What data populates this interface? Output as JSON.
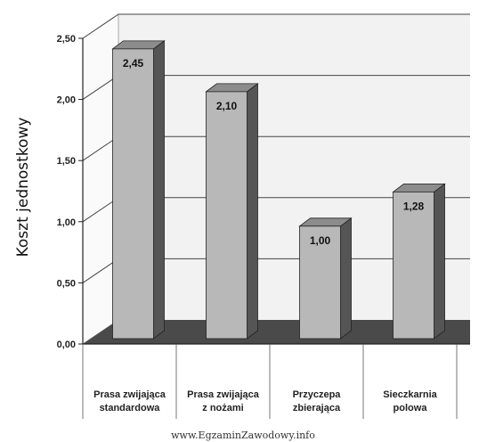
{
  "chart_data": {
    "type": "bar",
    "title": "",
    "xlabel": "",
    "ylabel": "Koszt jednostkowy",
    "categories": [
      [
        "Prasa zwijająca",
        "standardowa"
      ],
      [
        "Prasa zwijająca",
        "z nożami"
      ],
      [
        "Przyczepa",
        "zbierająca"
      ],
      [
        "Sieczkarnia",
        "polowa"
      ]
    ],
    "values": [
      2.45,
      2.1,
      1.0,
      1.28
    ],
    "value_labels": [
      "2,45",
      "2,10",
      "1,00",
      "1,28"
    ],
    "ylim": [
      0,
      2.5
    ],
    "yticks": [
      {
        "value": 0,
        "label": "0,00"
      },
      {
        "value": 0.5,
        "label": "0,50"
      },
      {
        "value": 1.0,
        "label": "1,00"
      },
      {
        "value": 1.5,
        "label": "1,50"
      },
      {
        "value": 2.0,
        "label": "2,00"
      },
      {
        "value": 2.5,
        "label": "2,50"
      }
    ],
    "grid": true,
    "style": "3d-bar",
    "colors": {
      "bar_front": "#b8b8b8",
      "bar_side": "#555555",
      "bar_top": "#8c8c8c",
      "floor": "#4a4a4a",
      "wall": "#f2f2f2",
      "gridline": "#444444"
    }
  },
  "watermark": "www.EgzaminZawodowy.info"
}
